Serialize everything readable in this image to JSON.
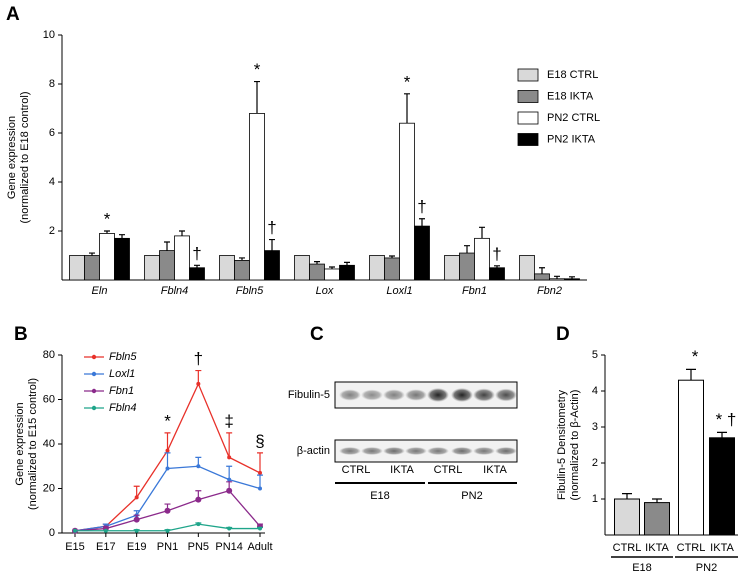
{
  "chart_data": [
    {
      "panel": "A",
      "type": "grouped_bar",
      "ylabel": [
        "Gene expression",
        "(normalized to E18 control)"
      ],
      "categories": [
        "Eln",
        "Fbln4",
        "Fbln5",
        "Lox",
        "Loxl1",
        "Fbn1",
        "Fbn2"
      ],
      "ylim": [
        0,
        10
      ],
      "yticks": [
        2,
        4,
        6,
        8,
        10
      ],
      "series": [
        {
          "name": "E18 CTRL",
          "color": "#d9d9d9",
          "values": [
            1,
            1,
            1,
            1,
            1,
            1,
            1
          ],
          "errors": [
            0,
            0,
            0,
            0,
            0,
            0,
            0
          ],
          "symbols": [
            null,
            null,
            null,
            null,
            null,
            null,
            null
          ]
        },
        {
          "name": "E18  IKTA",
          "color": "#8a8a8a",
          "values": [
            1.0,
            1.2,
            0.8,
            0.65,
            0.9,
            1.1,
            0.25
          ],
          "errors": [
            0.1,
            0.35,
            0.1,
            0.1,
            0.08,
            0.3,
            0.25
          ],
          "symbols": [
            null,
            null,
            null,
            null,
            null,
            null,
            null
          ]
        },
        {
          "name": "PN2 CTRL",
          "color": "#ffffff",
          "values": [
            1.9,
            1.8,
            6.8,
            0.45,
            6.4,
            1.7,
            0.05
          ],
          "errors": [
            0.1,
            0.2,
            1.3,
            0.08,
            1.2,
            0.45,
            0.1
          ],
          "symbols": [
            "*",
            null,
            "*",
            null,
            "*",
            null,
            null
          ]
        },
        {
          "name": "PN2  IKTA",
          "color": "#000000",
          "values": [
            1.7,
            0.5,
            1.2,
            0.6,
            2.2,
            0.5,
            0.05
          ],
          "errors": [
            0.15,
            0.1,
            0.45,
            0.12,
            0.3,
            0.08,
            0.08
          ],
          "symbols": [
            null,
            "†",
            "†",
            null,
            "†",
            "†",
            null
          ]
        }
      ]
    },
    {
      "panel": "B",
      "type": "line",
      "ylabel": [
        "Gene expression",
        "(normalized to E15 control)"
      ],
      "categories": [
        "E15",
        "E17",
        "E19",
        "PN1",
        "PN5",
        "PN14",
        "Adult"
      ],
      "ylim": [
        0,
        80
      ],
      "yticks": [
        0,
        20,
        40,
        60,
        80
      ],
      "symbols": [
        null,
        null,
        null,
        "*",
        "†",
        "‡",
        "§"
      ],
      "series": [
        {
          "name": "Fbln5",
          "color": "#e8312a",
          "values": [
            1,
            3,
            16,
            37,
            67,
            34,
            27
          ],
          "errors": [
            0,
            1,
            5,
            8,
            6,
            11,
            9
          ]
        },
        {
          "name": "Loxl1",
          "color": "#3a78d8",
          "values": [
            1,
            3,
            8,
            29,
            30,
            24,
            20
          ],
          "errors": [
            0,
            1,
            2,
            7,
            4,
            6,
            6
          ]
        },
        {
          "name": "Fbn1",
          "color": "#8b2a8b",
          "values": [
            1,
            2,
            6,
            10,
            15,
            19,
            3
          ],
          "errors": [
            0,
            1,
            2,
            3,
            4,
            4,
            1
          ]
        },
        {
          "name": "Fbln4",
          "color": "#1fa58a",
          "values": [
            1,
            1,
            1,
            1,
            4,
            2,
            2
          ],
          "errors": [
            0,
            0,
            0.5,
            0.5,
            0.5,
            0.5,
            0.5
          ]
        }
      ]
    },
    {
      "panel": "D",
      "type": "bar",
      "ylabel": [
        "Fibulin-5 Densitometry",
        "(normalized to β-Actin)"
      ],
      "categories": [
        "CTRL",
        "IKTA",
        "CTRL",
        "IKTA"
      ],
      "groups": [
        "E18",
        "PN2"
      ],
      "ylim": [
        0,
        5
      ],
      "yticks": [
        1,
        2,
        3,
        4,
        5
      ],
      "values": [
        1.0,
        0.9,
        4.3,
        2.7
      ],
      "errors": [
        0.15,
        0.1,
        0.3,
        0.15
      ],
      "colors": [
        "#d9d9d9",
        "#8a8a8a",
        "#ffffff",
        "#000000"
      ],
      "symbols": [
        null,
        null,
        "*",
        "* †"
      ]
    }
  ],
  "blot": {
    "panel": "C",
    "rows": [
      "Fibulin-5",
      "β-actin"
    ],
    "lanes": [
      "CTRL",
      "IKTA",
      "CTRL",
      "IKTA"
    ],
    "groups": [
      "E18",
      "PN2"
    ]
  }
}
